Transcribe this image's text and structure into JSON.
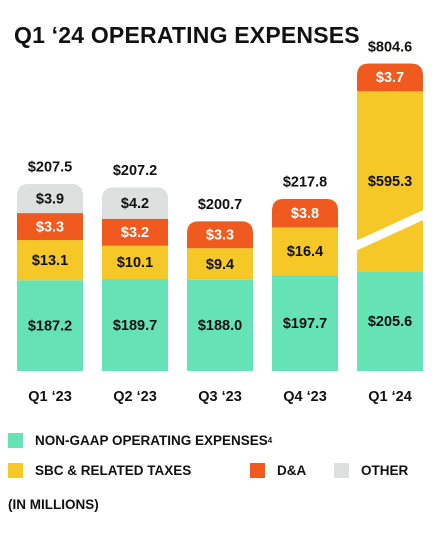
{
  "header": {
    "title": "Q1 ‘24 OPERATING EXPENSES"
  },
  "colors": {
    "non_gaap": "#66E3B6",
    "sbc": "#F5C727",
    "da": "#F05A1E",
    "other": "#DCE0DF",
    "text": "#111111",
    "label_on_dark": "#FFFFFF"
  },
  "legend": {
    "non_gaap": {
      "label": "NON-GAAP OPERATING EXPENSES",
      "footnote": "4"
    },
    "sbc": {
      "label": "SBC & RELATED TAXES"
    },
    "da": {
      "label": "D&A"
    },
    "other": {
      "label": "OTHER"
    }
  },
  "footer": {
    "units_note": "(IN MILLIONS)"
  },
  "chart_data": {
    "type": "bar",
    "stacked": true,
    "categories": [
      "Q1 ‘23",
      "Q2 ‘23",
      "Q3 ‘23",
      "Q4 ‘23",
      "Q1 ‘24"
    ],
    "series": [
      {
        "name": "NON-GAAP OPERATING EXPENSES",
        "key": "non_gaap",
        "values": [
          187.2,
          189.7,
          188.0,
          197.7,
          205.6
        ]
      },
      {
        "name": "SBC & RELATED TAXES",
        "key": "sbc",
        "values": [
          13.1,
          10.1,
          9.4,
          16.4,
          595.3
        ]
      },
      {
        "name": "D&A",
        "key": "da",
        "values": [
          3.3,
          3.2,
          3.3,
          3.8,
          3.7
        ]
      },
      {
        "name": "OTHER",
        "key": "other",
        "values": [
          3.9,
          4.2,
          null,
          null,
          null
        ]
      }
    ],
    "totals": [
      207.5,
      207.2,
      200.7,
      217.8,
      804.6
    ],
    "data_labels": [
      [
        "$187.2",
        "$189.7",
        "$188.0",
        "$197.7",
        "$205.6"
      ],
      [
        "$13.1",
        "$10.1",
        "$9.4",
        "$16.4",
        "$595.3"
      ],
      [
        "$3.3",
        "$3.2",
        "$3.3",
        "$3.8",
        "$3.7"
      ],
      [
        "$3.9",
        "$4.2",
        "",
        "",
        ""
      ]
    ],
    "total_labels": [
      "$207.5",
      "$207.2",
      "$200.7",
      "$217.8",
      "$804.6"
    ],
    "broken_axis_bar": "Q1 ‘24",
    "units": "(IN MILLIONS)",
    "legend_position": "bottom",
    "grid": false
  }
}
